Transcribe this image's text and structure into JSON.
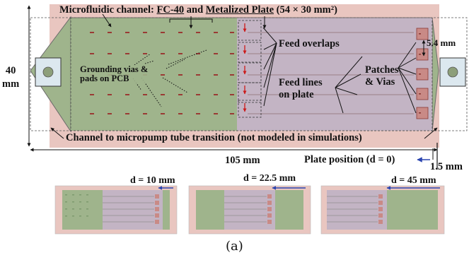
{
  "title": {
    "prefix": "Microfluidic channel: ",
    "fluid": "FC-40",
    "and": " and ",
    "plate": "Metalized Plate",
    "dims": " (54 × 30 mm²)"
  },
  "labels": {
    "grounding_line1": "Grounding vias &",
    "grounding_line2": "pads on PCB",
    "feed_overlaps": "Feed overlaps",
    "feed_lines_line1": "Feed lines",
    "feed_lines_line2": "on plate",
    "patches_line1": "Patches",
    "patches_line2": "& Vias",
    "patch_spacing": "5.4 mm",
    "transition": "Channel to micropump tube transition (not modeled in simulations)",
    "height_value": "40",
    "height_unit": "mm",
    "length": "105 mm",
    "plate_position": "Plate position (d = 0)",
    "offset": "1.5 mm"
  },
  "thumbnails": [
    {
      "label": "d = 10 mm"
    },
    {
      "label": "d = 22.5 mm"
    },
    {
      "label": "d = 45 mm"
    }
  ],
  "caption": "(a)",
  "colors": {
    "channel": "#e9c6c0",
    "pcb": "#9fb48c",
    "plate": "#c3b4c4",
    "via": "#9a3a34",
    "patch": "#c98a86",
    "arrow_red": "#cc1a1a",
    "arrow_blue": "#2b45b0"
  }
}
